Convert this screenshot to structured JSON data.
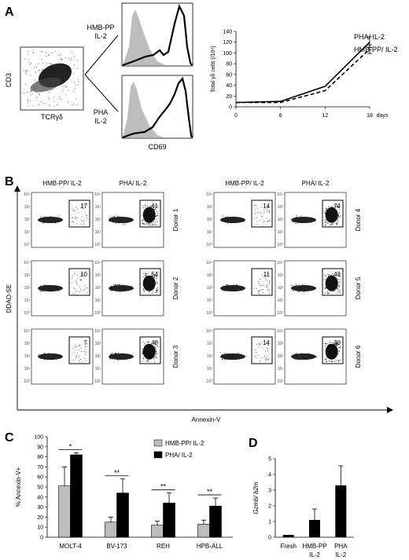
{
  "figure": {
    "panel_letters": [
      "A",
      "B",
      "C",
      "D"
    ],
    "panelA": {
      "dotplot": {
        "ylabel": "CD3",
        "xlabel": "TCRγδ"
      },
      "histograms": [
        {
          "label_line1": "HMB-PP",
          "label_line2": "IL-2"
        },
        {
          "label_line1": "PHA",
          "label_line2": "IL-2"
        }
      ],
      "histogram_xlabel": "CD69"
    },
    "panelB": {
      "col_headers": [
        "HMB-PP/ IL-2",
        "PHA/ IL-2",
        "HMB-PP/ IL-2",
        "PHA/ IL-2"
      ],
      "donors": [
        "Donor 1",
        "Donor 2",
        "Donor 3",
        "Donor 4",
        "Donor 5",
        "Donor 6"
      ],
      "gate_values": [
        [
          "17",
          "41",
          "14",
          "74"
        ],
        [
          "10",
          "54",
          "11",
          "43"
        ],
        [
          "7",
          "40",
          "14",
          "30"
        ]
      ],
      "ylabel": "DDAO-SE",
      "xlabel": "Annexin-V"
    }
  },
  "chart_data": [
    {
      "type": "line",
      "panel": "A",
      "x": [
        0,
        6,
        12,
        18
      ],
      "xticks": [
        "0",
        "6",
        "12",
        "18"
      ],
      "xlabel": "days",
      "ylabel": "Total γδ cells (/10⁶)",
      "ylim": [
        0,
        140
      ],
      "yticks": [
        "0",
        "20",
        "40",
        "60",
        "80",
        "100",
        "120",
        "140"
      ],
      "series": [
        {
          "name": "PHA/ IL-2",
          "values": [
            8,
            10,
            38,
            120
          ],
          "error": [
            0,
            0,
            0,
            10
          ],
          "style": "solid"
        },
        {
          "name": "HMB-PP/ IL-2",
          "values": [
            8,
            8,
            30,
            107
          ],
          "error": [
            0,
            0,
            0,
            8
          ],
          "style": "dashed"
        }
      ],
      "legend_position": "top-right"
    },
    {
      "type": "bar",
      "panel": "C",
      "categories": [
        "MOLT-4",
        "BV-173",
        "REH",
        "HPB-ALL"
      ],
      "ylabel": "% Annexin-V+",
      "ylim": [
        0,
        100
      ],
      "yticks": [
        "0",
        "10",
        "20",
        "30",
        "40",
        "50",
        "60",
        "70",
        "80",
        "90",
        "100"
      ],
      "series": [
        {
          "name": "HMB-PP/ IL-2",
          "color": "#bcbcbc",
          "values": [
            51,
            15,
            12,
            13
          ],
          "error": [
            19,
            5,
            4,
            4
          ]
        },
        {
          "name": "PHA/ IL-2",
          "color": "#000000",
          "values": [
            82,
            44,
            34,
            31
          ],
          "error": [
            2,
            14,
            10,
            8
          ]
        }
      ],
      "significance": [
        "*",
        "**",
        "**",
        "**"
      ],
      "legend_position": "top-right"
    },
    {
      "type": "bar",
      "panel": "D",
      "categories": [
        "Fresh",
        "HMB-PP IL-2",
        "PHA IL-2"
      ],
      "category_lines": [
        [
          "Fresh"
        ],
        [
          "HMB-PP",
          "IL-2"
        ],
        [
          "PHA",
          "IL-2"
        ]
      ],
      "ylabel_italic": "Gzmb/ b2m",
      "ylim": [
        0,
        5
      ],
      "yticks": [
        "0",
        "1",
        "2",
        "3",
        "4",
        "5"
      ],
      "series": [
        {
          "name": "Gzmb/b2m",
          "color": "#000000",
          "values": [
            0.15,
            1.1,
            3.3
          ],
          "error": [
            0,
            0.7,
            1.25
          ]
        }
      ]
    }
  ]
}
